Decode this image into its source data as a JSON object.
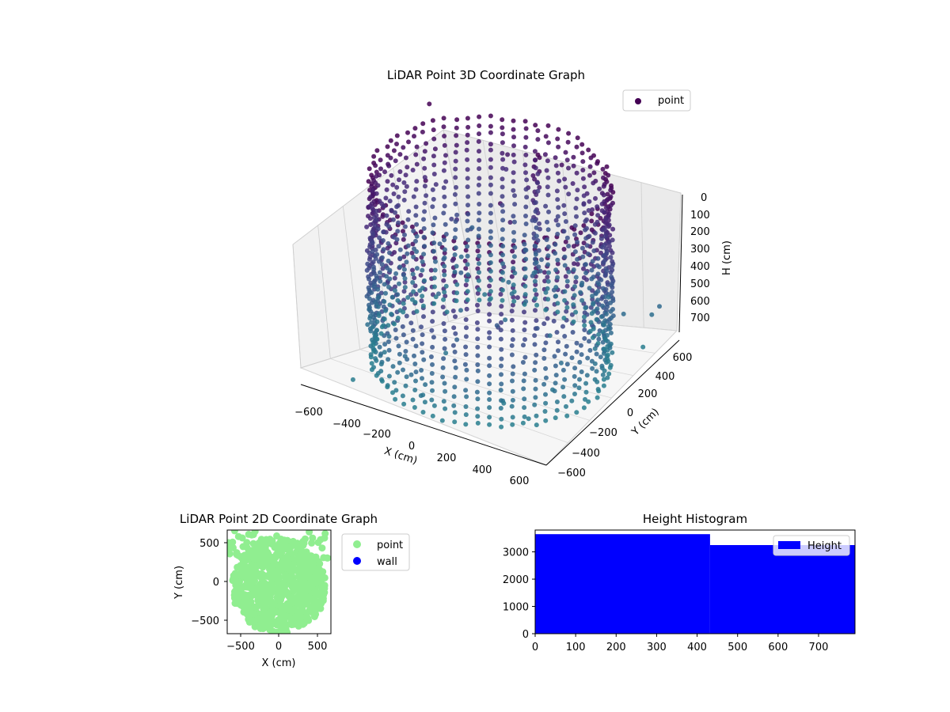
{
  "figure": {
    "background": "#ffffff"
  },
  "chart_data": [
    {
      "type": "scatter",
      "projection": "3d",
      "title": "LiDAR Point 3D Coordinate Graph",
      "xlabel": "X (cm)",
      "ylabel": "Y (cm)",
      "zlabel": "H (cm)",
      "xlim": [
        -700,
        700
      ],
      "ylim": [
        -700,
        700
      ],
      "zlim": [
        0,
        780
      ],
      "z_axis_inverted": true,
      "x_ticks": [
        "−600",
        "−400",
        "−200",
        "0",
        "200",
        "400",
        "600"
      ],
      "y_ticks": [
        "−600",
        "−400",
        "−200",
        "0",
        "200",
        "400",
        "600"
      ],
      "z_ticks": [
        "0",
        "100",
        "200",
        "300",
        "400",
        "500",
        "600",
        "700"
      ],
      "legend": {
        "entries": [
          "point"
        ],
        "location": "upper right"
      },
      "colormap": "viridis",
      "grid": true,
      "description_of_points": "dense cylindrical wall of points, radius ~600 cm, height 0-780 cm, with a vertical column near the center and scattered outliers",
      "shape": {
        "wall_radius": 600,
        "wall_height_min": 0,
        "wall_height_max": 780
      },
      "series": [
        {
          "name": "point"
        }
      ]
    },
    {
      "type": "scatter",
      "title": "LiDAR Point 2D Coordinate Graph",
      "xlabel": "X (cm)",
      "ylabel": "Y (cm)",
      "xlim": [
        -680,
        680
      ],
      "ylim": [
        -680,
        680
      ],
      "x_ticks": [
        "−500",
        "0",
        "500"
      ],
      "y_ticks": [
        "500",
        "0",
        "−500"
      ],
      "legend": {
        "entries": [
          "point",
          "wall"
        ],
        "location": "outside right"
      },
      "series": [
        {
          "name": "point",
          "color": "#90ee90"
        },
        {
          "name": "wall",
          "color": "#0000ff"
        }
      ]
    },
    {
      "type": "bar",
      "title": "Height Histogram",
      "xlim": [
        0,
        790
      ],
      "ylim": [
        0,
        3800
      ],
      "x_ticks": [
        "0",
        "100",
        "200",
        "300",
        "400",
        "500",
        "600",
        "700"
      ],
      "y_ticks": [
        "0",
        "1000",
        "2000",
        "3000"
      ],
      "legend": {
        "entries": [
          "Height"
        ],
        "location": "upper right"
      },
      "bins": [
        {
          "start": 0,
          "end": 432,
          "count": 3650
        },
        {
          "start": 432,
          "end": 790,
          "count": 3250
        }
      ],
      "series": [
        {
          "name": "Height",
          "color": "#0000ff"
        }
      ]
    }
  ]
}
